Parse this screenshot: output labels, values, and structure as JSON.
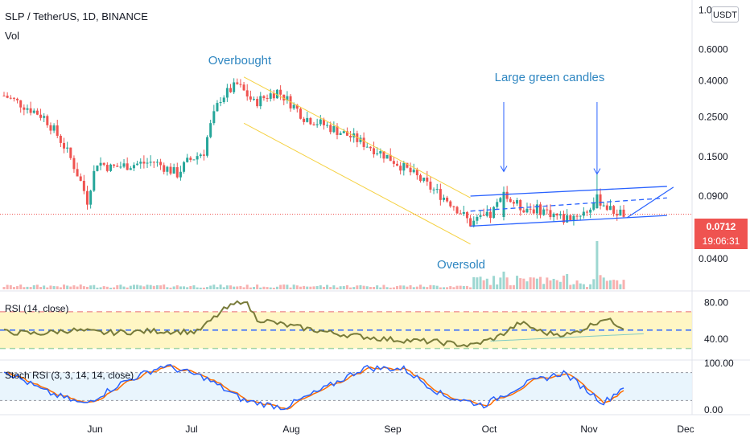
{
  "header": {
    "symbol_line": "SLP / TetherUS, 1D, BINANCE",
    "volume_label": "Vol",
    "rsi_label": "RSI (14, close)",
    "stoch_label": "Stoch RSI (3, 3, 14, 14, close)"
  },
  "currency_button": "USDT",
  "last_price": {
    "value": "0.0712",
    "countdown": "19:06:31"
  },
  "annotations": {
    "overbought": "Overbought",
    "oversold": "Oversold",
    "large_green": "Large green candles"
  },
  "colors": {
    "up": "#26a69a",
    "down": "#ef5350",
    "annotation": "#2962ff",
    "channel_down": "#f5d142",
    "rsi_band": "#fff3b0",
    "stoch_band": "#e3f2fd",
    "stoch_k": "#2962ff",
    "stoch_d": "#ff6d00",
    "rsi_line": "#787b3a"
  },
  "chart_data": {
    "type": "candlestick",
    "price_axis": {
      "scale": "log",
      "ticks": [
        "1.0000",
        "0.6000",
        "0.4000",
        "0.2500",
        "0.1500",
        "0.0900",
        "0.0400"
      ]
    },
    "rsi_axis": {
      "ticks": [
        "80.00",
        "40.00"
      ],
      "levels": [
        70,
        50,
        30
      ]
    },
    "stoch_axis": {
      "ticks": [
        "100.00",
        "0.00"
      ],
      "levels": [
        80,
        20
      ]
    },
    "x_ticks": [
      "Jun",
      "Jul",
      "Aug",
      "Sep",
      "Oct",
      "Nov",
      "Dec"
    ],
    "close_anchors": [
      {
        "day": 0,
        "close": 0.33
      },
      {
        "day": 12,
        "close": 0.25
      },
      {
        "day": 22,
        "close": 0.12
      },
      {
        "day": 25,
        "close": 0.085
      },
      {
        "day": 28,
        "close": 0.14
      },
      {
        "day": 32,
        "close": 0.13
      },
      {
        "day": 38,
        "close": 0.135
      },
      {
        "day": 45,
        "close": 0.14
      },
      {
        "day": 52,
        "close": 0.12
      },
      {
        "day": 55,
        "close": 0.14
      },
      {
        "day": 60,
        "close": 0.16
      },
      {
        "day": 65,
        "close": 0.32
      },
      {
        "day": 70,
        "close": 0.38
      },
      {
        "day": 75,
        "close": 0.3
      },
      {
        "day": 82,
        "close": 0.35
      },
      {
        "day": 90,
        "close": 0.25
      },
      {
        "day": 100,
        "close": 0.21
      },
      {
        "day": 110,
        "close": 0.17
      },
      {
        "day": 120,
        "close": 0.13
      },
      {
        "day": 128,
        "close": 0.1
      },
      {
        "day": 135,
        "close": 0.08
      },
      {
        "day": 140,
        "close": 0.063
      },
      {
        "day": 146,
        "close": 0.07
      },
      {
        "day": 150,
        "close": 0.09
      },
      {
        "day": 155,
        "close": 0.078
      },
      {
        "day": 162,
        "close": 0.075
      },
      {
        "day": 168,
        "close": 0.067
      },
      {
        "day": 175,
        "close": 0.074
      },
      {
        "day": 178,
        "close": 0.088
      },
      {
        "day": 182,
        "close": 0.075
      },
      {
        "day": 186,
        "close": 0.0712
      }
    ],
    "rsi_anchors": [
      {
        "day": 0,
        "value": 48
      },
      {
        "day": 10,
        "value": 46
      },
      {
        "day": 20,
        "value": 50
      },
      {
        "day": 30,
        "value": 47
      },
      {
        "day": 45,
        "value": 49
      },
      {
        "day": 58,
        "value": 48
      },
      {
        "day": 66,
        "value": 72
      },
      {
        "day": 72,
        "value": 83
      },
      {
        "day": 76,
        "value": 62
      },
      {
        "day": 85,
        "value": 55
      },
      {
        "day": 100,
        "value": 46
      },
      {
        "day": 115,
        "value": 40
      },
      {
        "day": 130,
        "value": 37
      },
      {
        "day": 140,
        "value": 33
      },
      {
        "day": 148,
        "value": 42
      },
      {
        "day": 155,
        "value": 58
      },
      {
        "day": 162,
        "value": 47
      },
      {
        "day": 170,
        "value": 45
      },
      {
        "day": 176,
        "value": 55
      },
      {
        "day": 180,
        "value": 63
      },
      {
        "day": 186,
        "value": 53
      }
    ],
    "stoch_pattern": [
      85,
      40,
      12,
      60,
      95,
      70,
      20,
      5,
      45,
      90,
      88,
      30,
      10,
      55,
      80,
      15
    ],
    "large_green_candles": [
      {
        "day": 150,
        "close": 0.095
      },
      {
        "day": 178,
        "close": 0.092
      }
    ],
    "channel_down": {
      "from": {
        "day": 72,
        "price": 0.42
      },
      "to": {
        "day": 140,
        "price": 0.088
      },
      "width": 0.55
    },
    "channel_up": {
      "from": {
        "day": 140,
        "low": 0.061,
        "high": 0.09
      },
      "to": {
        "day": 199,
        "low": 0.07,
        "high": 0.102
      }
    }
  }
}
